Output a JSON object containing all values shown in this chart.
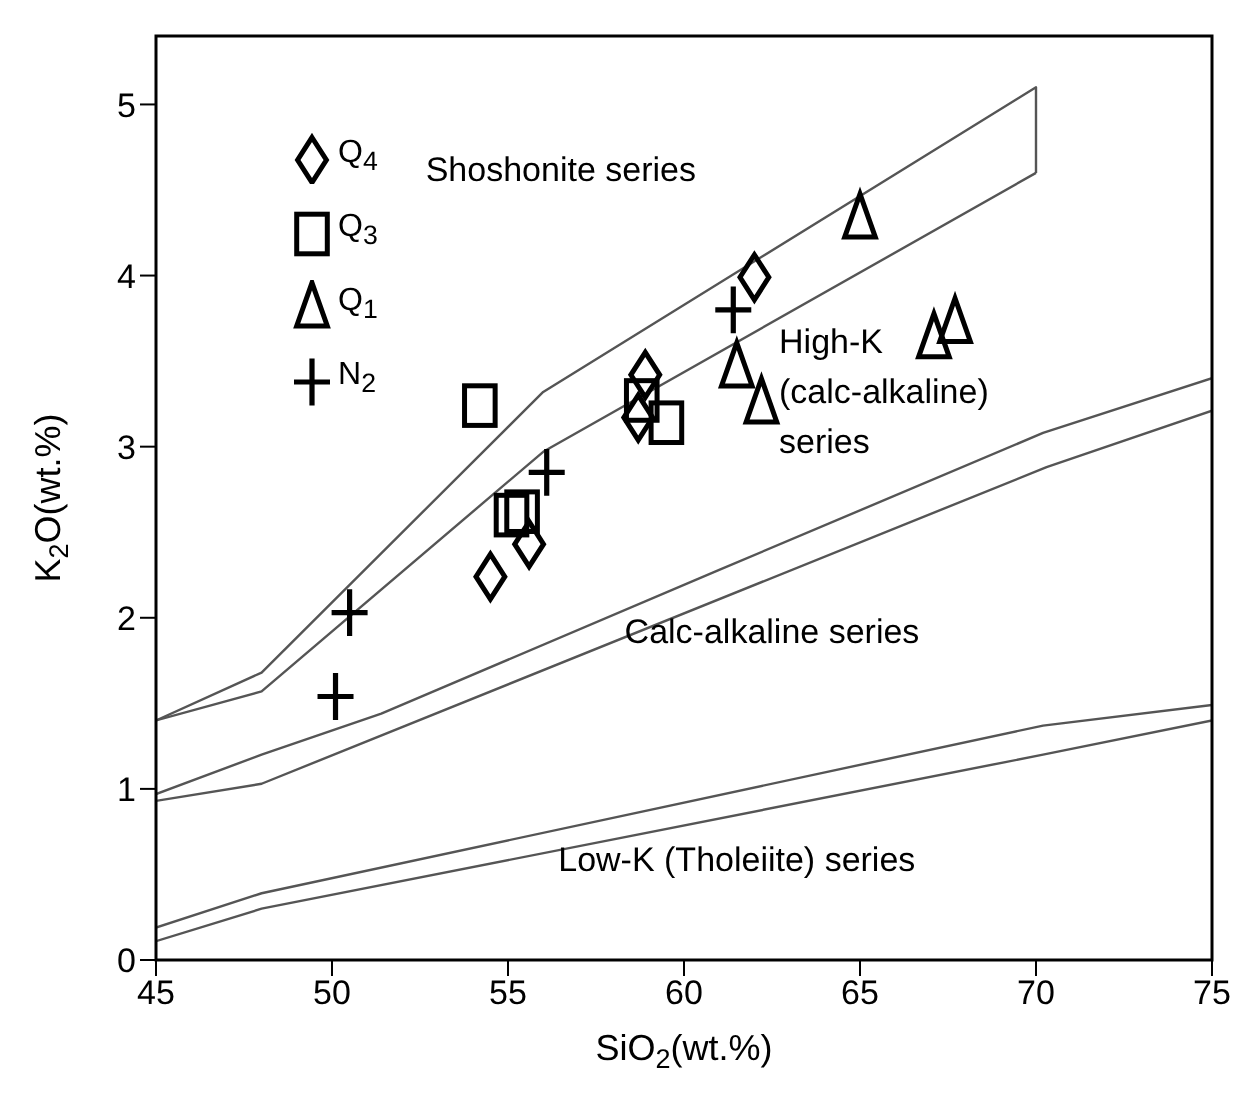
{
  "chart_data": {
    "type": "scatter",
    "xlabel": "SiO$_{2}$(wt.%)",
    "ylabel": "K$_{2}$O(wt.%)",
    "xlim": [
      45,
      75
    ],
    "ylim": [
      0,
      5.4
    ],
    "xticks": [
      45,
      50,
      55,
      60,
      65,
      70,
      75
    ],
    "yticks": [
      0,
      1,
      2,
      3,
      4,
      5
    ],
    "grid": false,
    "legend": "top left",
    "series": [
      {
        "name": "Q$_{4}$",
        "color": "#000000",
        "marker": "diamond",
        "x": [
          54.5,
          55.6,
          58.7,
          58.9,
          62.0
        ],
        "values": [
          2.24,
          2.43,
          3.17,
          3.42,
          3.99
        ]
      },
      {
        "name": "Q$_{3}$",
        "color": "#000000",
        "marker": "square",
        "x": [
          54.2,
          55.1,
          55.4,
          58.8,
          59.5
        ],
        "values": [
          3.24,
          2.6,
          2.62,
          3.27,
          3.14
        ]
      },
      {
        "name": "Q$_{1}$",
        "color": "#000000",
        "marker": "triangle",
        "x": [
          65.0,
          61.5,
          62.2,
          67.1,
          67.7
        ],
        "values": [
          4.33,
          3.46,
          3.25,
          3.63,
          3.72
        ]
      },
      {
        "name": "N$_{2}$",
        "color": "#000000",
        "marker": "cross",
        "x": [
          50.1,
          50.5,
          56.1,
          61.4
        ],
        "values": [
          1.54,
          2.03,
          2.85,
          3.8
        ]
      },
      {
        "type": "line",
        "color": "#555555",
        "x": [
          45,
          48,
          56,
          70,
          70
        ],
        "values": [
          1.4,
          1.68,
          3.32,
          5.1,
          4.6
        ]
      },
      {
        "type": "line",
        "color": "#555555",
        "x": [
          45,
          48,
          56,
          70
        ],
        "values": [
          1.4,
          1.57,
          2.97,
          4.6
        ]
      },
      {
        "type": "line",
        "color": "#555555",
        "x": [
          45,
          48,
          51.4,
          61,
          70.2,
          75
        ],
        "values": [
          0.97,
          1.2,
          1.44,
          2.28,
          3.08,
          3.4
        ]
      },
      {
        "type": "line",
        "color": "#555555",
        "x": [
          45,
          48,
          70.3,
          75
        ],
        "values": [
          0.93,
          1.03,
          2.88,
          3.21
        ]
      },
      {
        "type": "line",
        "color": "#555555",
        "x": [
          45,
          48,
          70.2,
          75
        ],
        "values": [
          0.19,
          0.39,
          1.37,
          1.49
        ]
      },
      {
        "type": "line",
        "color": "#555555",
        "x": [
          45,
          48,
          70.2,
          75
        ],
        "values": [
          0.11,
          0.3,
          1.2,
          1.4
        ]
      }
    ],
    "annotations": [
      "Shoshonite series",
      "High-K\n(calc-alkaline)\nseries",
      "Calc-alkaline series",
      "Low-K (Tholeiite) series"
    ]
  }
}
